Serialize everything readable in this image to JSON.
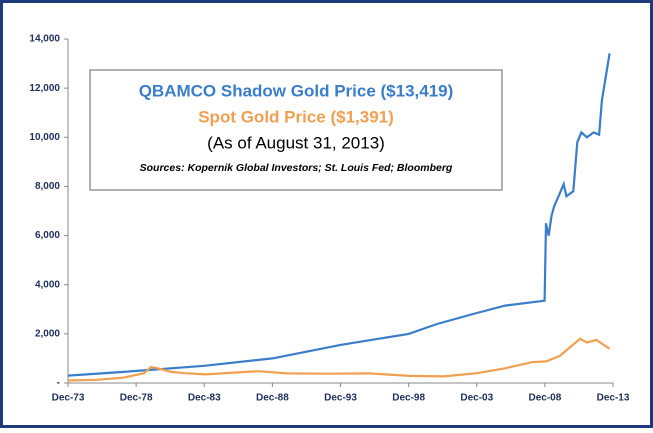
{
  "chart_data": {
    "type": "line",
    "title": "QBAMCO Shadow Gold Price ($13,419)",
    "subtitle": "Spot Gold Price ($1,391)",
    "annotations": [
      "(As of August 31, 2013)",
      "Sources: Kopernik Global Investors; St. Louis Fed; Bloomberg"
    ],
    "series": [
      {
        "name": "QBAMCO Shadow Gold Price ($13,419)",
        "color": "#3a7dc9",
        "x": [
          1973.917,
          1978,
          1983.917,
          1988.917,
          1993.917,
          1998.917,
          2001,
          2003.917,
          2006,
          2008.9,
          2009.0,
          2009.2,
          2009.4,
          2009.6,
          2010.0,
          2010.3,
          2010.5,
          2011.0,
          2011.3,
          2011.6,
          2012.0,
          2012.5,
          2012.9,
          2013.1,
          2013.667
        ],
        "values": [
          300,
          450,
          700,
          1000,
          1550,
          2000,
          2400,
          2850,
          3150,
          3350,
          6500,
          6000,
          6800,
          7200,
          7700,
          8100,
          7600,
          7800,
          9800,
          10200,
          10000,
          10200,
          10100,
          11500,
          13419
        ]
      },
      {
        "name": "Spot Gold Price ($1,391)",
        "color": "#f0a050",
        "x": [
          1973.917,
          1976,
          1978,
          1979.5,
          1980.0,
          1980.5,
          1981.5,
          1982.5,
          1984,
          1987.9,
          1990,
          1993,
          1996,
          1999,
          2001.5,
          2003.917,
          2006,
          2008,
          2009,
          2010,
          2011.5,
          2012.0,
          2012.7,
          2013.667
        ],
        "values": [
          100,
          130,
          220,
          400,
          650,
          600,
          450,
          400,
          350,
          480,
          390,
          380,
          390,
          290,
          270,
          400,
          600,
          850,
          880,
          1100,
          1800,
          1650,
          1750,
          1391
        ]
      }
    ],
    "xlim": [
      1973.917,
      2013.917
    ],
    "xticks": [
      {
        "value": 1973.917,
        "label": "Dec-73"
      },
      {
        "value": 1978.917,
        "label": "Dec-78"
      },
      {
        "value": 1983.917,
        "label": "Dec-83"
      },
      {
        "value": 1988.917,
        "label": "Dec-88"
      },
      {
        "value": 1993.917,
        "label": "Dec-93"
      },
      {
        "value": 1998.917,
        "label": "Dec-98"
      },
      {
        "value": 2003.917,
        "label": "Dec-03"
      },
      {
        "value": 2008.917,
        "label": "Dec-08"
      },
      {
        "value": 2013.917,
        "label": "Dec-13"
      }
    ],
    "ylim": [
      0,
      14000
    ],
    "yticks": [
      {
        "value": 0,
        "label": "-"
      },
      {
        "value": 2000,
        "label": "2,000"
      },
      {
        "value": 4000,
        "label": "4,000"
      },
      {
        "value": 6000,
        "label": "6,000"
      },
      {
        "value": 8000,
        "label": "8,000"
      },
      {
        "value": 10000,
        "label": "10,000"
      },
      {
        "value": 12000,
        "label": "12,000"
      },
      {
        "value": 14000,
        "label": "14,000"
      }
    ]
  }
}
